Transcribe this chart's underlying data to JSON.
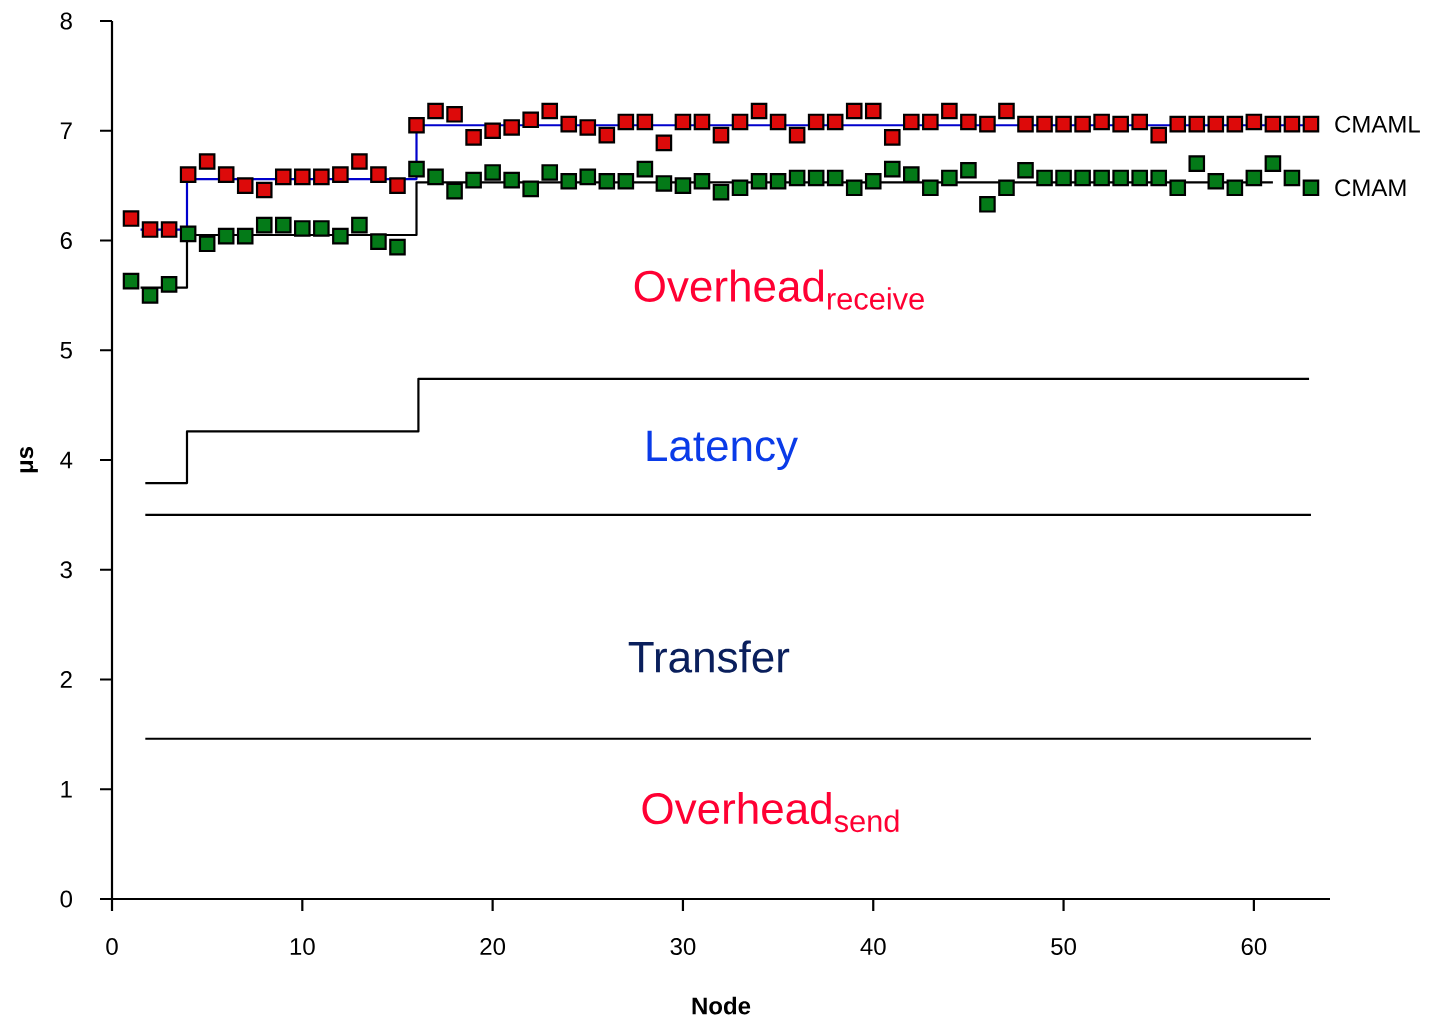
{
  "chart_data": {
    "type": "scatter",
    "xlabel": "Node",
    "ylabel": "μs",
    "x": [
      1,
      2,
      3,
      4,
      5,
      6,
      7,
      8,
      9,
      10,
      11,
      12,
      13,
      14,
      15,
      16,
      17,
      18,
      19,
      20,
      21,
      22,
      23,
      24,
      25,
      26,
      27,
      28,
      29,
      30,
      31,
      32,
      33,
      34,
      35,
      36,
      37,
      38,
      39,
      40,
      41,
      42,
      43,
      44,
      45,
      46,
      47,
      48,
      49,
      50,
      51,
      52,
      53,
      54,
      55,
      56,
      57,
      58,
      59,
      60,
      61,
      62,
      63
    ],
    "xlim": [
      0,
      64
    ],
    "ylim": [
      0,
      8
    ],
    "xticks": [
      0,
      10,
      20,
      30,
      40,
      50,
      60
    ],
    "yticks": [
      0,
      1,
      2,
      3,
      4,
      5,
      6,
      7,
      8
    ],
    "marker": "square",
    "series": [
      {
        "type": "step",
        "marker": "none",
        "color": "#0000cc",
        "x": [
          1.5,
          3.94,
          16,
          63
        ],
        "values": [
          6.1,
          6.56,
          7.05,
          7.05
        ]
      },
      {
        "type": "step",
        "marker": "none",
        "color": "#000000",
        "x": [
          1.5,
          3.94,
          16,
          61
        ],
        "values": [
          5.57,
          6.05,
          6.53,
          6.53
        ]
      },
      {
        "type": "step",
        "marker": "none",
        "color": "#000000",
        "x": [
          1.75,
          3.94,
          16.1,
          62.9
        ],
        "values": [
          3.79,
          4.26,
          4.74,
          4.74
        ]
      },
      {
        "type": "line",
        "marker": "none",
        "color": "#000000",
        "x": [
          1.75,
          63
        ],
        "values": [
          3.5,
          3.5
        ]
      },
      {
        "type": "line",
        "marker": "none",
        "color": "#000000",
        "x": [
          1.75,
          63
        ],
        "values": [
          1.46,
          1.46
        ]
      },
      {
        "name": "CMAML",
        "color": "#dd0a0a",
        "values": [
          6.2,
          6.1,
          6.1,
          6.6,
          6.72,
          6.6,
          6.5,
          6.46,
          6.58,
          6.58,
          6.58,
          6.6,
          6.72,
          6.6,
          6.5,
          7.05,
          7.18,
          7.15,
          6.94,
          7.0,
          7.03,
          7.1,
          7.18,
          7.06,
          7.03,
          6.96,
          7.08,
          7.08,
          6.89,
          7.08,
          7.08,
          6.96,
          7.08,
          7.18,
          7.08,
          6.96,
          7.08,
          7.08,
          7.18,
          7.18,
          6.94,
          7.08,
          7.08,
          7.18,
          7.08,
          7.06,
          7.18,
          7.06,
          7.06,
          7.06,
          7.06,
          7.08,
          7.06,
          7.08,
          6.96,
          7.06,
          7.06,
          7.06,
          7.06,
          7.08,
          7.06,
          7.06,
          7.06
        ]
      },
      {
        "name": "CMAM",
        "color": "#047a18",
        "values": [
          5.63,
          5.5,
          5.6,
          6.06,
          5.97,
          6.04,
          6.04,
          6.14,
          6.14,
          6.11,
          6.11,
          6.04,
          6.14,
          5.99,
          5.94,
          6.65,
          6.58,
          6.45,
          6.55,
          6.62,
          6.55,
          6.47,
          6.62,
          6.54,
          6.58,
          6.54,
          6.54,
          6.65,
          6.52,
          6.5,
          6.54,
          6.44,
          6.48,
          6.54,
          6.54,
          6.57,
          6.57,
          6.57,
          6.48,
          6.54,
          6.65,
          6.6,
          6.48,
          6.57,
          6.64,
          6.33,
          6.48,
          6.64,
          6.57,
          6.57,
          6.57,
          6.57,
          6.57,
          6.57,
          6.57,
          6.48,
          6.7,
          6.54,
          6.48,
          6.57,
          6.7,
          6.57,
          6.48
        ]
      }
    ],
    "annotations": [
      "Overhead$_{receive}$",
      "Latency",
      "Transfer",
      "Overhead$_{send}$"
    ]
  }
}
